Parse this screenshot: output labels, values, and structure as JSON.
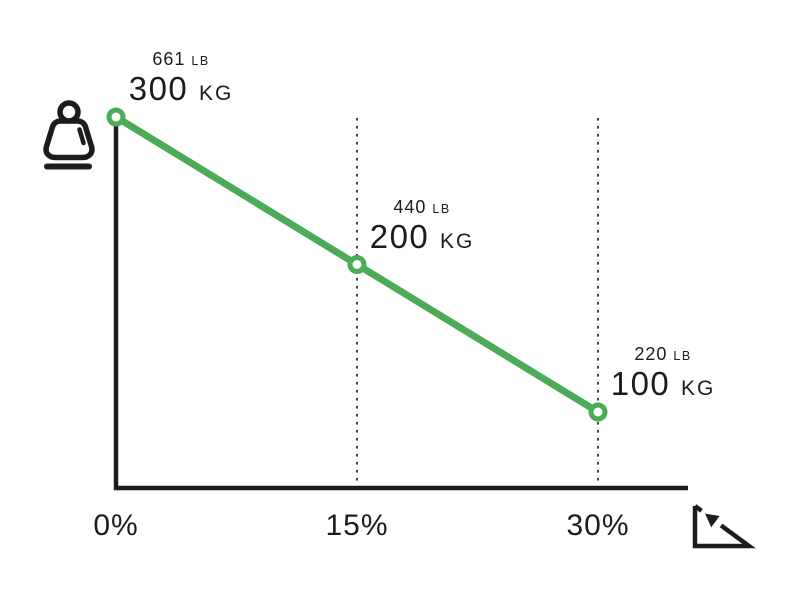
{
  "chart_data": {
    "type": "line",
    "x": [
      0,
      15,
      30
    ],
    "x_tick_labels": [
      "0%",
      "15%",
      "30%"
    ],
    "series": [
      {
        "name": "max-load-kg",
        "values": [
          300,
          200,
          100
        ]
      },
      {
        "name": "max-load-lb",
        "values": [
          661,
          440,
          220
        ]
      }
    ],
    "points": [
      {
        "incline": "0%",
        "kg": "300",
        "kg_unit": "KG",
        "lb": "661",
        "lb_unit": "LB"
      },
      {
        "incline": "15%",
        "kg": "200",
        "kg_unit": "KG",
        "lb": "440",
        "lb_unit": "LB"
      },
      {
        "incline": "30%",
        "kg": "100",
        "kg_unit": "KG",
        "lb": "220",
        "lb_unit": "LB"
      }
    ],
    "xlabel": "",
    "ylabel": "",
    "legend": "none",
    "grid": "dotted vertical guides at 15% and 30%",
    "ylim_kg": [
      50,
      300
    ]
  },
  "colors": {
    "line": "#4cab57",
    "axis": "#1c1c1c",
    "text": "#1c1c1c",
    "background": "#ffffff"
  },
  "icons": {
    "weight": "weight-icon",
    "incline": "incline-slope-arrow-icon"
  }
}
